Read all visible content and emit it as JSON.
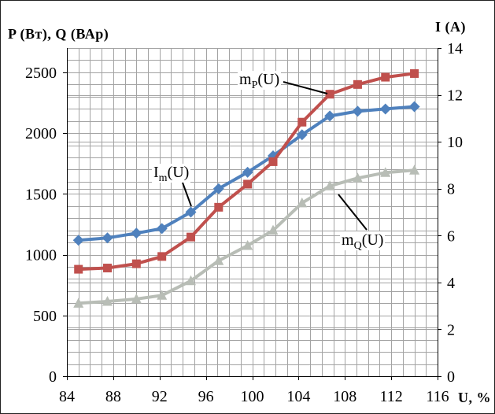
{
  "chart_data": {
    "type": "line",
    "x_label": "U, %",
    "y_left_label": "P (Вт), Q (ВАр)",
    "y_right_label": "I (A)",
    "xlim": [
      84,
      116
    ],
    "y_left_lim": [
      0,
      2700
    ],
    "y_right_lim": [
      0,
      14
    ],
    "x_ticks": [
      84,
      88,
      92,
      96,
      100,
      104,
      108,
      112,
      116
    ],
    "y_left_ticks": [
      0,
      500,
      1000,
      1500,
      2000,
      2500
    ],
    "y_right_ticks": [
      0,
      2,
      4,
      6,
      8,
      10,
      12,
      14
    ],
    "grid": true,
    "legend": "none",
    "x": [
      85.0,
      87.5,
      90.0,
      92.2,
      94.7,
      97.1,
      99.6,
      101.8,
      104.3,
      106.7,
      109.1,
      111.5,
      114.0
    ],
    "series": [
      {
        "label": {
          "main": "I",
          "sub": "m",
          "rest": "(U)"
        },
        "axis": "right",
        "color": "#4f81bd",
        "marker": "diamond",
        "values": [
          5.8,
          5.9,
          6.1,
          6.3,
          7.0,
          8.0,
          8.7,
          9.4,
          10.3,
          11.1,
          11.3,
          11.4,
          11.5
        ]
      },
      {
        "label": {
          "main": "m",
          "sub": "P",
          "rest": "(U)"
        },
        "axis": "left",
        "color": "#c0504d",
        "marker": "square",
        "values": [
          880,
          890,
          925,
          985,
          1145,
          1390,
          1580,
          1765,
          2090,
          2320,
          2400,
          2460,
          2490
        ]
      },
      {
        "label": {
          "main": "m",
          "sub": "Q",
          "rest": "(U)"
        },
        "axis": "left",
        "color": "#b8bdb6",
        "marker": "triangle",
        "values": [
          600,
          615,
          635,
          665,
          785,
          950,
          1075,
          1200,
          1425,
          1565,
          1630,
          1675,
          1695
        ]
      }
    ]
  }
}
